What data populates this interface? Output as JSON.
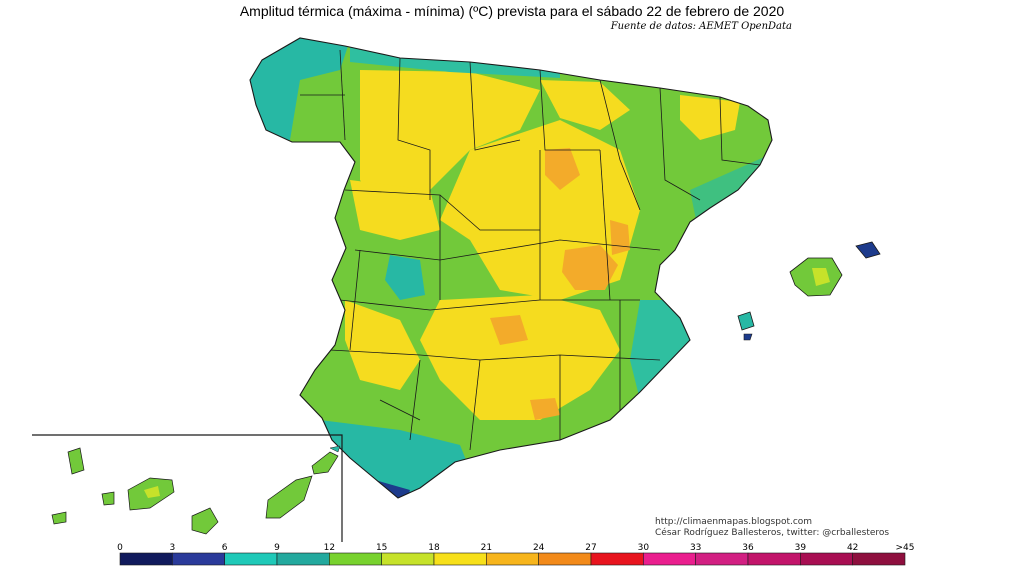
{
  "header": {
    "title": "Amplitud térmica (máxima - mínima) (ºC) prevista para el sábado 22 de febrero de 2020",
    "source": "Fuente de datos: AEMET OpenData"
  },
  "credits": {
    "url": "http://climaenmapas.blogspot.com",
    "author": "César Rodríguez Ballesteros, twitter: @crballesteros"
  },
  "legend": {
    "ticks": [
      "0",
      "3",
      "6",
      "9",
      "12",
      "15",
      "18",
      "21",
      "24",
      "27",
      "30",
      "33",
      "36",
      "39",
      "42",
      ">45"
    ],
    "colors": [
      "#101a5c",
      "#2a3a9a",
      "#1fc9b8",
      "#23a99e",
      "#78d22e",
      "#c6e22a",
      "#f7e01a",
      "#f7b51c",
      "#f28a1a",
      "#e8141e",
      "#ea1e8e",
      "#d21f82",
      "#c2146a",
      "#a80e52",
      "#8e0f3e"
    ]
  },
  "colors": {
    "land_base": "#72c93a",
    "warm_interior": "#f5dc1f",
    "hot_spot": "#f3ab2a",
    "coast_cyan": "#27b8a4",
    "coast_dark": "#1d3b8c",
    "border": "#1a1a1a"
  }
}
